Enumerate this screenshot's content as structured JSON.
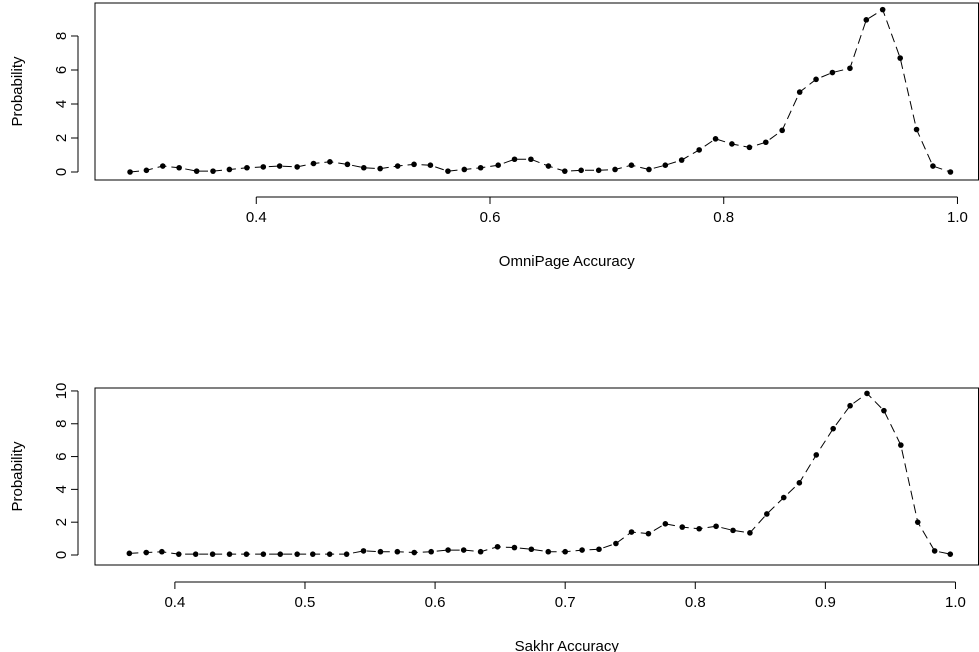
{
  "chart_data": [
    {
      "type": "line",
      "xlabel": "OmniPage Accuracy",
      "ylabel": "Probability",
      "color": "#000000",
      "x": [
        0.292,
        0.306,
        0.32,
        0.334,
        0.349,
        0.363,
        0.377,
        0.392,
        0.406,
        0.42,
        0.435,
        0.449,
        0.463,
        0.478,
        0.492,
        0.506,
        0.521,
        0.535,
        0.549,
        0.564,
        0.578,
        0.592,
        0.607,
        0.621,
        0.635,
        0.65,
        0.664,
        0.678,
        0.693,
        0.707,
        0.721,
        0.736,
        0.75,
        0.764,
        0.779,
        0.793,
        0.807,
        0.822,
        0.836,
        0.85,
        0.865,
        0.879,
        0.893,
        0.908,
        0.922,
        0.936,
        0.951,
        0.965,
        0.979,
        0.994
      ],
      "values": [
        0.0,
        0.1,
        0.35,
        0.25,
        0.05,
        0.05,
        0.15,
        0.25,
        0.3,
        0.35,
        0.3,
        0.5,
        0.6,
        0.45,
        0.25,
        0.2,
        0.35,
        0.45,
        0.4,
        0.05,
        0.15,
        0.25,
        0.4,
        0.75,
        0.75,
        0.35,
        0.05,
        0.1,
        0.1,
        0.15,
        0.4,
        0.15,
        0.4,
        0.7,
        1.3,
        1.95,
        1.65,
        1.45,
        1.75,
        2.45,
        4.7,
        5.45,
        5.85,
        6.1,
        8.95,
        9.55,
        6.7,
        2.5,
        0.35,
        0.0
      ],
      "xlim": [
        0.262,
        1.018
      ],
      "ylim": [
        -0.47,
        9.94
      ],
      "xticks": [
        0.4,
        0.6,
        0.8,
        {
          "value": 1.0,
          "label": "1.0"
        }
      ],
      "yticks": [
        0,
        2,
        4,
        6,
        8
      ]
    },
    {
      "type": "line",
      "xlabel": "Sakhr Accuracy",
      "ylabel": "Probability",
      "color": "#000000",
      "x": [
        0.365,
        0.378,
        0.39,
        0.403,
        0.416,
        0.429,
        0.442,
        0.455,
        0.468,
        0.481,
        0.494,
        0.506,
        0.519,
        0.532,
        0.545,
        0.558,
        0.571,
        0.584,
        0.597,
        0.61,
        0.622,
        0.635,
        0.648,
        0.661,
        0.674,
        0.687,
        0.7,
        0.713,
        0.726,
        0.739,
        0.751,
        0.764,
        0.777,
        0.79,
        0.803,
        0.816,
        0.829,
        0.842,
        0.855,
        0.868,
        0.88,
        0.893,
        0.906,
        0.919,
        0.932,
        0.945,
        0.958,
        0.971,
        0.984,
        0.996
      ],
      "values": [
        0.1,
        0.15,
        0.2,
        0.05,
        0.05,
        0.05,
        0.05,
        0.05,
        0.05,
        0.05,
        0.05,
        0.05,
        0.05,
        0.05,
        0.25,
        0.2,
        0.2,
        0.15,
        0.2,
        0.3,
        0.3,
        0.2,
        0.5,
        0.45,
        0.35,
        0.2,
        0.2,
        0.3,
        0.35,
        0.7,
        1.4,
        1.3,
        1.9,
        1.7,
        1.6,
        1.75,
        1.5,
        1.35,
        2.5,
        3.5,
        4.4,
        6.1,
        7.7,
        9.1,
        9.85,
        8.8,
        6.7,
        2.0,
        0.25,
        0.05
      ],
      "xlim": [
        0.3386,
        1.0177
      ],
      "ylim": [
        -0.61,
        10.18
      ],
      "xticks": [
        0.4,
        0.5,
        0.6,
        0.7,
        0.8,
        0.9,
        {
          "value": 1.0,
          "label": "1.0"
        }
      ],
      "yticks": [
        0,
        2,
        4,
        6,
        8,
        10
      ]
    }
  ]
}
